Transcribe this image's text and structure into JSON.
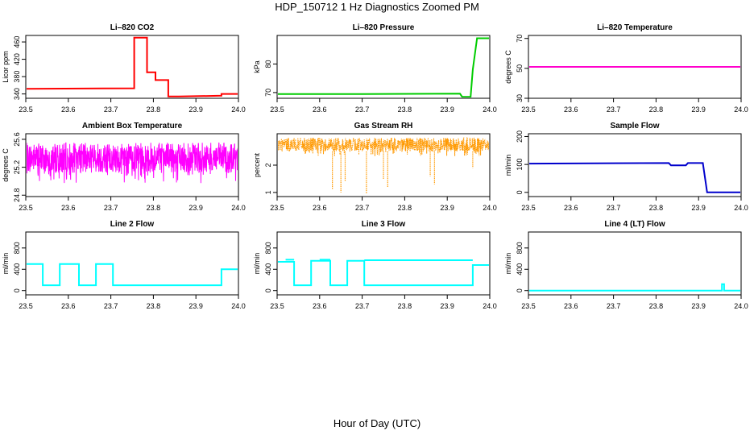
{
  "figure": {
    "title": "HDP_150712  1 Hz Diagnostics Zoomed PM",
    "xlabel": "Hour of Day (UTC)"
  },
  "chart_data": [
    {
      "type": "line",
      "title": "Li–820 CO2",
      "ylabel": "Licor ppm",
      "color": "#ff0000",
      "xlim": [
        23.5,
        24.0
      ],
      "xticks": [
        23.5,
        23.6,
        23.7,
        23.8,
        23.9,
        24.0
      ],
      "ylim": [
        330,
        475
      ],
      "yticks": [
        340,
        380,
        420,
        460
      ],
      "x": [
        23.5,
        23.755,
        23.755,
        23.785,
        23.785,
        23.805,
        23.805,
        23.835,
        23.835,
        23.86,
        23.86,
        23.96,
        23.96,
        24.0
      ],
      "y": [
        352,
        353,
        470,
        470,
        390,
        390,
        372,
        372,
        334,
        334,
        334,
        336,
        340,
        340
      ]
    },
    {
      "type": "line",
      "title": "Li–820 Pressure",
      "ylabel": "kPa",
      "color": "#00cc00",
      "xlim": [
        23.5,
        24.0
      ],
      "xticks": [
        23.5,
        23.6,
        23.7,
        23.8,
        23.9,
        24.0
      ],
      "ylim": [
        68,
        90
      ],
      "yticks": [
        70,
        80
      ],
      "x": [
        23.5,
        23.7,
        23.93,
        23.935,
        23.955,
        23.96,
        23.97,
        24.0
      ],
      "y": [
        69.5,
        69.5,
        69.6,
        68.5,
        68.5,
        78,
        89,
        89
      ]
    },
    {
      "type": "line",
      "title": "Li–820 Temperature",
      "ylabel": "degrees C",
      "color": "#ff00cc",
      "xlim": [
        23.5,
        24.0
      ],
      "xticks": [
        23.5,
        23.6,
        23.7,
        23.8,
        23.9,
        24.0
      ],
      "ylim": [
        30,
        72
      ],
      "yticks": [
        30,
        50,
        70
      ],
      "x": [
        23.5,
        24.0
      ],
      "y": [
        51,
        51
      ]
    },
    {
      "type": "line",
      "title": "Ambient Box Temperature",
      "ylabel": "degrees C",
      "color": "#ff00ff",
      "noise": "dense",
      "xlim": [
        23.5,
        24.0
      ],
      "xticks": [
        23.5,
        23.6,
        23.7,
        23.8,
        23.9,
        24.0
      ],
      "ylim": [
        24.78,
        25.68
      ],
      "yticks": [
        24.8,
        25.2,
        25.6
      ],
      "band": [
        25.12,
        25.55
      ],
      "x": [
        23.5,
        24.0
      ],
      "y": [
        25.35,
        25.35
      ]
    },
    {
      "type": "line",
      "title": "Gas Stream RH",
      "ylabel": "percent",
      "color": "#ff9900",
      "noise": "dense",
      "xlim": [
        23.5,
        24.0
      ],
      "xticks": [
        23.5,
        23.6,
        23.7,
        23.8,
        23.9,
        24.0
      ],
      "ylim": [
        0.85,
        3.15
      ],
      "yticks": [
        1.0,
        2.0
      ],
      "band": [
        2.5,
        3.0
      ],
      "dips": [
        [
          23.63,
          1.1
        ],
        [
          23.65,
          1.0
        ],
        [
          23.66,
          1.4
        ],
        [
          23.71,
          0.95
        ],
        [
          23.75,
          1.5
        ],
        [
          23.76,
          1.2
        ],
        [
          23.86,
          1.6
        ],
        [
          23.87,
          1.3
        ],
        [
          23.96,
          1.9
        ]
      ],
      "x": [
        23.5,
        24.0
      ],
      "y": [
        2.7,
        2.7
      ]
    },
    {
      "type": "line",
      "title": "Sample Flow",
      "ylabel": "ml/min",
      "color": "#0000cc",
      "xlim": [
        23.5,
        24.0
      ],
      "xticks": [
        23.5,
        23.6,
        23.7,
        23.8,
        23.9,
        24.0
      ],
      "ylim": [
        -15,
        210
      ],
      "yticks": [
        0,
        100,
        200
      ],
      "x": [
        23.5,
        23.83,
        23.835,
        23.87,
        23.875,
        23.91,
        23.92,
        24.0
      ],
      "y": [
        103,
        105,
        97,
        97,
        105,
        105,
        0,
        0
      ]
    },
    {
      "type": "line",
      "title": "Line 2 Flow",
      "ylabel": "ml/min",
      "color": "#00ffff",
      "xlim": [
        23.5,
        24.0
      ],
      "xticks": [
        23.5,
        23.6,
        23.7,
        23.8,
        23.9,
        24.0
      ],
      "ylim": [
        -80,
        1100
      ],
      "yticks": [
        0,
        400,
        800
      ],
      "x": [
        23.5,
        23.5,
        23.54,
        23.54,
        23.58,
        23.58,
        23.625,
        23.625,
        23.665,
        23.665,
        23.705,
        23.705,
        23.96,
        23.96,
        24.0
      ],
      "y": [
        100,
        500,
        500,
        100,
        100,
        500,
        500,
        100,
        100,
        500,
        500,
        100,
        100,
        400,
        400
      ]
    },
    {
      "type": "line",
      "title": "Line 3 Flow",
      "ylabel": "ml/min",
      "color": "#00ffff",
      "xlim": [
        23.5,
        24.0
      ],
      "xticks": [
        23.5,
        23.6,
        23.7,
        23.8,
        23.9,
        24.0
      ],
      "ylim": [
        -80,
        1100
      ],
      "yticks": [
        0,
        400,
        800
      ],
      "x": [
        23.5,
        23.5,
        23.54,
        23.54,
        23.58,
        23.58,
        23.625,
        23.625,
        23.665,
        23.665,
        23.705,
        23.705,
        23.96,
        23.96,
        24.0
      ],
      "y": [
        100,
        540,
        540,
        100,
        100,
        560,
        560,
        100,
        100,
        560,
        560,
        100,
        100,
        480,
        480
      ],
      "steps_note": "",
      "plateaus": [
        [
          23.52,
          23.54,
          580
        ],
        [
          23.6,
          23.625,
          580
        ],
        [
          23.705,
          23.96,
          570
        ]
      ]
    },
    {
      "type": "line",
      "title": "Line 4 (LT) Flow",
      "ylabel": "ml/min",
      "color": "#00ffff",
      "xlim": [
        23.5,
        24.0
      ],
      "xticks": [
        23.5,
        23.6,
        23.7,
        23.8,
        23.9,
        24.0
      ],
      "ylim": [
        -80,
        1100
      ],
      "yticks": [
        0,
        400,
        800
      ],
      "x": [
        23.5,
        23.955,
        23.955,
        23.96,
        23.96,
        24.0
      ],
      "y": [
        0,
        0,
        120,
        120,
        0,
        0
      ]
    }
  ]
}
